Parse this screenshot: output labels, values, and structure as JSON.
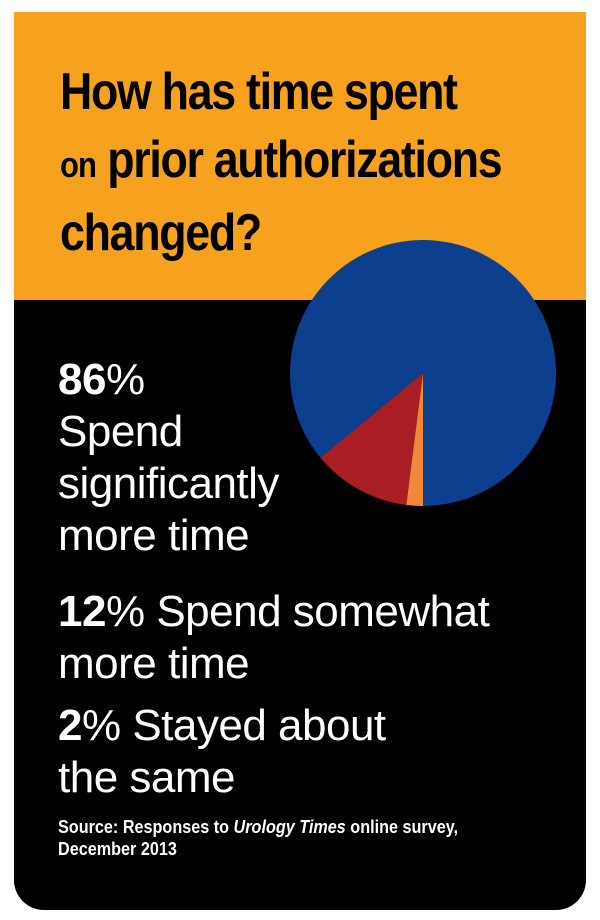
{
  "title": {
    "line1": "How has time spent",
    "line2_prefix": "on",
    "line2_rest": "prior authorizations",
    "line3": "changed?"
  },
  "stats": [
    {
      "value": "86",
      "sign": "%",
      "lines": [
        "Spend",
        "significantly",
        "more time"
      ]
    },
    {
      "value": "12",
      "sign": "%",
      "lines": [
        "Spend somewhat",
        "more time"
      ]
    },
    {
      "value": "2",
      "sign": "%",
      "lines": [
        "Stayed about",
        "the same"
      ]
    }
  ],
  "source": {
    "prefix": "Source: Responses to",
    "publication": "Urology Times",
    "suffix": "online survey,",
    "date": "December 2013"
  },
  "colors": {
    "header": "#f7a21e",
    "background": "#000000",
    "significantly_more": "#0d3f8f",
    "somewhat_more": "#a81e23",
    "same": "#f0883a"
  },
  "chart_data": {
    "type": "pie",
    "title": "How has time spent on prior authorizations changed?",
    "categories": [
      "Spend significantly more time",
      "Spend somewhat more time",
      "Stayed about the same"
    ],
    "values": [
      86,
      12,
      2
    ],
    "unit": "%",
    "colors": [
      "#0d3f8f",
      "#a81e23",
      "#f0883a"
    ]
  }
}
